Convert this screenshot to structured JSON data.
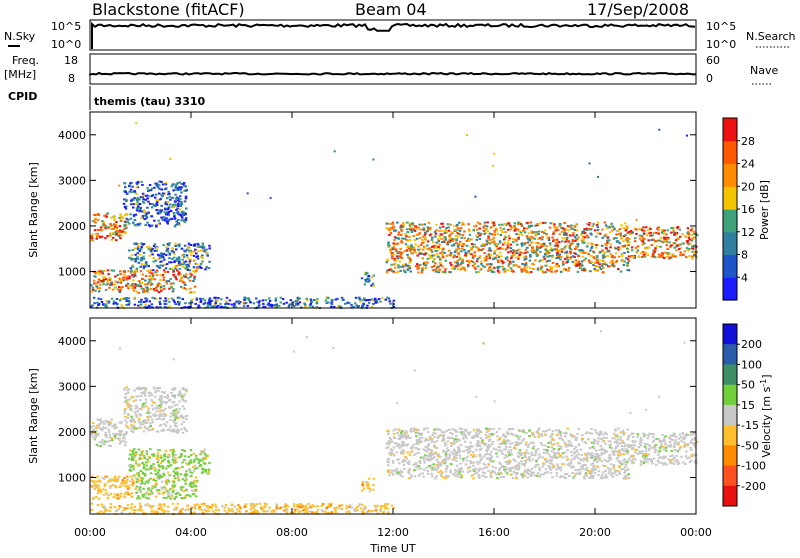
{
  "header": {
    "station": "Blackstone (fitACF)",
    "beam": "Beam 04",
    "date": "17/Sep/2008"
  },
  "strips": {
    "nsky_label": "N.Sky",
    "nsky_ticks": [
      "10^5",
      "10^0"
    ],
    "nsearch_label": "N.Search",
    "nsearch_ticks": [
      "10^5",
      "10^0"
    ],
    "freq_label": "Freq.",
    "freq_unit": "[MHz]",
    "freq_ticks": [
      "18",
      "8"
    ],
    "nave_label": "Nave",
    "nave_ticks": [
      "60",
      "0"
    ],
    "cpid_label": "CPID",
    "cpid_value": "themis (tau) 3310"
  },
  "chart_data": [
    {
      "type": "heatmap",
      "name": "power",
      "ylabel": "Slant Range [km]",
      "xlabel": "Time UT",
      "x_ticks": [
        "00:00",
        "04:00",
        "08:00",
        "12:00",
        "16:00",
        "20:00",
        "00:00"
      ],
      "xlim_hours": [
        0,
        24
      ],
      "ylim": [
        200,
        4500
      ],
      "y_ticks": [
        1000,
        2000,
        3000,
        4000
      ],
      "colorbar": {
        "label": "Power [dB]",
        "ticks": [
          "4",
          "8",
          "12",
          "16",
          "20",
          "24",
          "28"
        ],
        "range": [
          0,
          32
        ],
        "colors": [
          "#1b1bff",
          "#1f55c8",
          "#2f7fa0",
          "#3ea27a",
          "#f5c400",
          "#ff8c00",
          "#ff5a00",
          "#ee1111"
        ]
      },
      "regions": [
        {
          "t0": 0.0,
          "t1": 1.4,
          "r0": 1700,
          "r1": 2300,
          "level": 0.75
        },
        {
          "t0": 1.3,
          "t1": 3.8,
          "r0": 2000,
          "r1": 3000,
          "level": 0.2
        },
        {
          "t0": 1.5,
          "t1": 4.7,
          "r0": 1050,
          "r1": 1650,
          "level": 0.3
        },
        {
          "t0": 0.0,
          "t1": 4.2,
          "r0": 550,
          "r1": 1050,
          "level": 0.65
        },
        {
          "t0": 0.0,
          "t1": 12.0,
          "r0": 220,
          "r1": 450,
          "level": 0.2
        },
        {
          "t0": 10.7,
          "t1": 11.2,
          "r0": 700,
          "r1": 1000,
          "level": 0.35
        },
        {
          "t0": 11.7,
          "t1": 21.3,
          "r0": 1000,
          "r1": 2100,
          "level": 0.62
        },
        {
          "t0": 21.3,
          "t1": 24.0,
          "r0": 1300,
          "r1": 2000,
          "level": 0.7
        }
      ]
    },
    {
      "type": "heatmap",
      "name": "velocity",
      "ylabel": "Slant Range [km]",
      "xlabel": "Time UT",
      "x_ticks": [
        "00:00",
        "04:00",
        "08:00",
        "12:00",
        "16:00",
        "20:00",
        "00:00"
      ],
      "xlim_hours": [
        0,
        24
      ],
      "ylim": [
        200,
        4500
      ],
      "y_ticks": [
        1000,
        2000,
        3000,
        4000
      ],
      "colorbar": {
        "label": "Velocity [m s-1]",
        "label_main": "Velocity [m s",
        "label_exp": "-1",
        "label_end": "]",
        "ticks": [
          "200",
          "100",
          "50",
          "15",
          "-15",
          "-50",
          "-100",
          "-200"
        ],
        "colors": [
          "#1010d8",
          "#2a5caa",
          "#3d8f66",
          "#74d03a",
          "#c8c8c8",
          "#ffc030",
          "#ff8c00",
          "#ff5020",
          "#e81010"
        ]
      },
      "regions": [
        {
          "t0": 0.0,
          "t1": 1.4,
          "r0": 1700,
          "r1": 2300,
          "band": "grey"
        },
        {
          "t0": 1.3,
          "t1": 3.8,
          "r0": 2000,
          "r1": 3000,
          "band": "grey"
        },
        {
          "t0": 1.5,
          "t1": 4.7,
          "r0": 1050,
          "r1": 1650,
          "band": "green"
        },
        {
          "t0": 0.0,
          "t1": 1.8,
          "r0": 550,
          "r1": 1050,
          "band": "orange"
        },
        {
          "t0": 1.8,
          "t1": 4.2,
          "r0": 550,
          "r1": 1050,
          "band": "green"
        },
        {
          "t0": 0.0,
          "t1": 12.0,
          "r0": 220,
          "r1": 450,
          "band": "orange"
        },
        {
          "t0": 10.7,
          "t1": 11.2,
          "r0": 700,
          "r1": 1000,
          "band": "orange"
        },
        {
          "t0": 11.7,
          "t1": 21.3,
          "r0": 1000,
          "r1": 2100,
          "band": "grey"
        },
        {
          "t0": 21.3,
          "t1": 24.0,
          "r0": 1300,
          "r1": 2000,
          "band": "grey"
        }
      ]
    }
  ]
}
